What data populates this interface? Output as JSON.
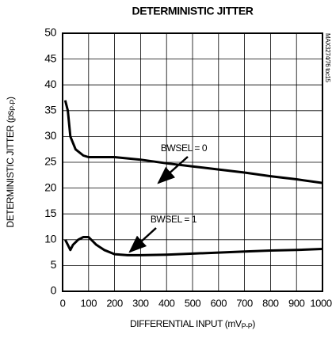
{
  "chart_data": {
    "type": "line",
    "title": "DETERMINISTIC JITTER",
    "x_label": {
      "text": "DIFFERENTIAL INPUT (mV",
      "subscript": "P-P",
      "suffix": ")"
    },
    "y_label": {
      "text": "DETERMINISTIC JITTER (ps",
      "subscript": "P-P",
      "suffix": ")"
    },
    "side_note": "MAX3274/76 toc15",
    "xlim": [
      0,
      1000
    ],
    "xticks": [
      0,
      100,
      200,
      300,
      400,
      500,
      600,
      700,
      800,
      900,
      1000
    ],
    "ylim": [
      0,
      50
    ],
    "yticks": [
      0,
      5,
      10,
      15,
      20,
      25,
      30,
      35,
      40,
      45,
      50
    ],
    "grid": true,
    "annotations": [
      "BWSEL = 0",
      "BWSEL = 1"
    ],
    "series": [
      {
        "color": "#000000",
        "x": [
          10,
          20,
          30,
          50,
          80,
          100,
          150,
          200,
          300,
          400,
          500,
          600,
          700,
          800,
          900,
          1000
        ],
        "values": [
          37,
          35,
          30,
          27.5,
          26.3,
          26,
          26,
          26,
          25.5,
          24.8,
          24.2,
          23.6,
          23,
          22.3,
          21.7,
          21
        ]
      },
      {
        "color": "#000000",
        "x": [
          10,
          20,
          30,
          40,
          60,
          80,
          100,
          130,
          160,
          200,
          250,
          300,
          400,
          500,
          600,
          700,
          800,
          900,
          1000
        ],
        "values": [
          10,
          9,
          8,
          9,
          10,
          10.5,
          10.5,
          9,
          8,
          7.2,
          7,
          7,
          7.1,
          7.3,
          7.5,
          7.7,
          7.9,
          8,
          8.2
        ]
      }
    ]
  }
}
